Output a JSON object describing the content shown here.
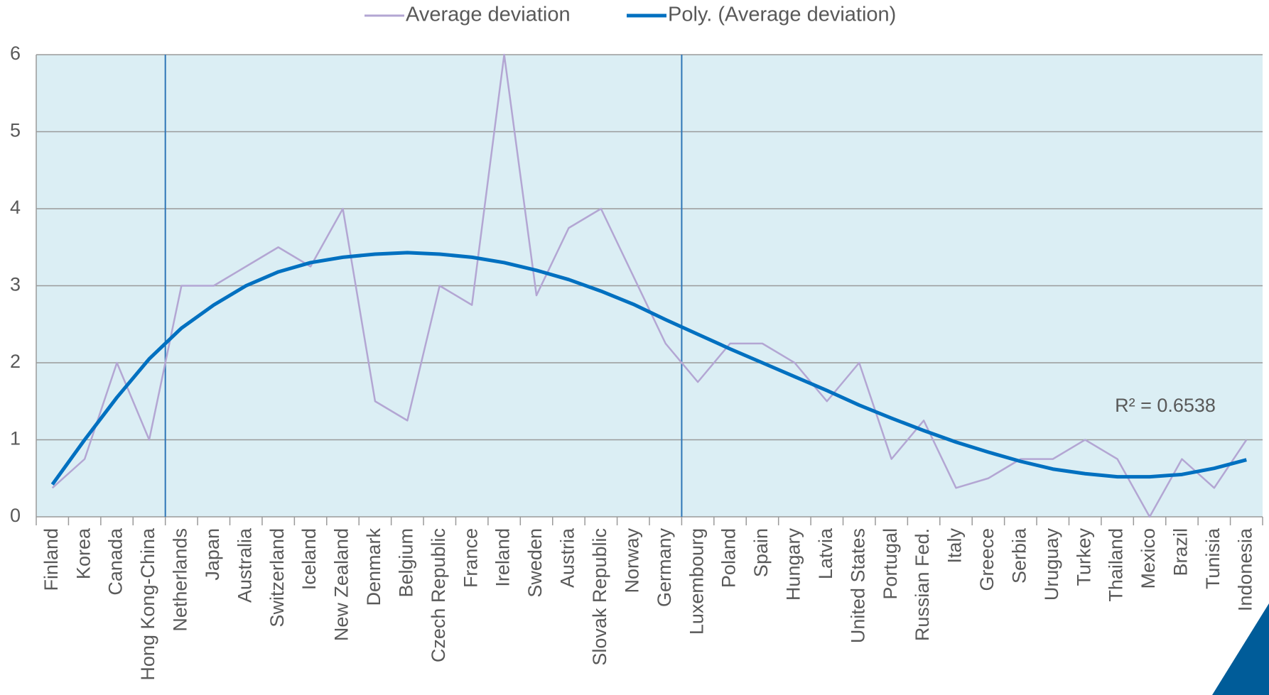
{
  "chart_data": {
    "type": "line",
    "categories": [
      "Finland",
      "Korea",
      "Canada",
      "Hong Kong-China",
      "Netherlands",
      "Japan",
      "Australia",
      "Switzerland",
      "Iceland",
      "New Zealand",
      "Denmark",
      "Belgium",
      "Czech Republic",
      "France",
      "Ireland",
      "Sweden",
      "Austria",
      "Slovak Republic",
      "Norway",
      "Germany",
      "Luxembourg",
      "Poland",
      "Spain",
      "Hungary",
      "Latvia",
      "United States",
      "Portugal",
      "Russian Fed.",
      "Italy",
      "Greece",
      "Serbia",
      "Uruguay",
      "Turkey",
      "Thailand",
      "Mexico",
      "Brazil",
      "Tunisia",
      "Indonesia"
    ],
    "series": [
      {
        "name": "Average deviation",
        "color": "#b3a6d3",
        "values": [
          0.375,
          0.75,
          2,
          1,
          3,
          3,
          3.25,
          3.5,
          3.25,
          4,
          1.5,
          1.25,
          3,
          2.75,
          6,
          2.875,
          3.75,
          4,
          3.125,
          2.25,
          1.75,
          2.25,
          2.25,
          2,
          1.5,
          2,
          0.75,
          1.25,
          0.375,
          0.5,
          0.75,
          0.75,
          1,
          0.75,
          0,
          0.75,
          0.375,
          1
        ]
      },
      {
        "name": "Poly. (Average deviation)",
        "color": "#0070c0",
        "values": [
          0.42,
          1.0,
          1.55,
          2.05,
          2.45,
          2.75,
          3.0,
          3.18,
          3.3,
          3.37,
          3.41,
          3.43,
          3.41,
          3.37,
          3.3,
          3.2,
          3.08,
          2.93,
          2.76,
          2.56,
          2.37,
          2.18,
          2.0,
          1.82,
          1.64,
          1.45,
          1.28,
          1.12,
          0.97,
          0.84,
          0.72,
          0.62,
          0.56,
          0.52,
          0.52,
          0.55,
          0.63,
          0.74
        ]
      }
    ],
    "annotation": "R² = 0.6538",
    "ylim": [
      0,
      6
    ],
    "yticks": [
      0,
      1,
      2,
      3,
      4,
      5,
      6
    ],
    "grid": true
  }
}
